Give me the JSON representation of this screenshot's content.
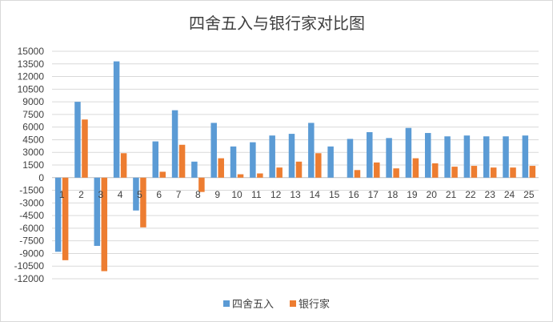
{
  "chart_data": {
    "type": "bar",
    "title": "四舍五入与银行家对比图",
    "xlabel": "",
    "ylabel": "",
    "categories": [
      "1",
      "2",
      "3",
      "4",
      "5",
      "6",
      "7",
      "8",
      "9",
      "10",
      "11",
      "12",
      "13",
      "14",
      "15",
      "16",
      "17",
      "18",
      "19",
      "20",
      "21",
      "22",
      "23",
      "24",
      "25"
    ],
    "series": [
      {
        "name": "四舍五入",
        "color": "#5b9bd5",
        "values": [
          -8800,
          9000,
          -8100,
          13800,
          -3900,
          4300,
          8000,
          1900,
          6500,
          3700,
          4200,
          5000,
          5200,
          6500,
          3700,
          4600,
          5400,
          4700,
          5900,
          5300,
          4900,
          5000,
          4900,
          4900,
          5000
        ]
      },
      {
        "name": "银行家",
        "color": "#ed7d31",
        "values": [
          -9800,
          6900,
          -11100,
          2900,
          -5900,
          700,
          3900,
          -1700,
          2300,
          400,
          500,
          1200,
          1900,
          2900,
          0,
          900,
          1800,
          1100,
          2300,
          1700,
          1300,
          1400,
          1200,
          1200,
          1400
        ]
      }
    ],
    "yticks": [
      15000,
      13500,
      12000,
      10500,
      9000,
      7500,
      6000,
      4500,
      3000,
      1500,
      0,
      -1500,
      -3000,
      -4500,
      -6000,
      -7500,
      -9000,
      -10500,
      -12000
    ],
    "ylim": [
      -12000,
      15000
    ],
    "grid": true,
    "legend_position": "bottom"
  }
}
